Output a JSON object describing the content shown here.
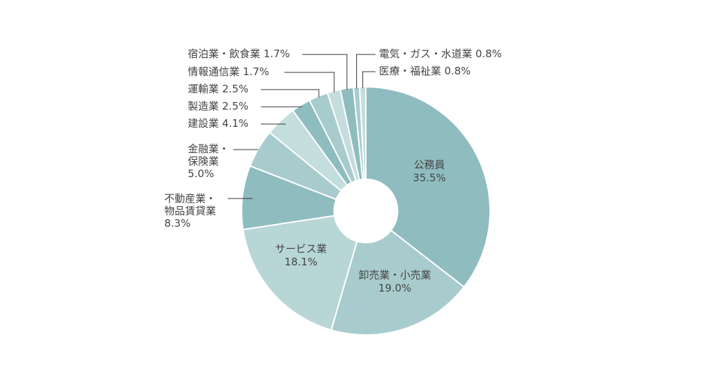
{
  "chart_data": {
    "type": "pie",
    "variant": "donut",
    "title": "",
    "slices": [
      {
        "name": "公務員",
        "value": 35.5,
        "label_value": "35.5%",
        "color": "#8fbcbf"
      },
      {
        "name": "卸売業・小売業",
        "value": 19.0,
        "label_value": "19.0%",
        "color": "#a8cccd"
      },
      {
        "name": "サービス業",
        "value": 18.1,
        "label_value": "18.1%",
        "color": "#b8d6d6"
      },
      {
        "name": "不動産業・物品賃貸業",
        "value": 8.3,
        "label_value": "8.3%",
        "color": "#8fbcbf"
      },
      {
        "name": "金融業・保険業",
        "value": 5.0,
        "label_value": "5.0%",
        "color": "#a8cccd"
      },
      {
        "name": "建設業",
        "value": 4.1,
        "label_value": "4.1%",
        "color": "#c4dddd"
      },
      {
        "name": "製造業",
        "value": 2.5,
        "label_value": "2.5%",
        "color": "#8fbcbf"
      },
      {
        "name": "運輸業",
        "value": 2.5,
        "label_value": "2.5%",
        "color": "#a8cccd"
      },
      {
        "name": "情報通信業",
        "value": 1.7,
        "label_value": "1.7%",
        "color": "#c4dddd"
      },
      {
        "name": "宿泊業・飲食業",
        "value": 1.7,
        "label_value": "1.7%",
        "color": "#8fbcbf"
      },
      {
        "name": "電気・ガス・水道業",
        "value": 0.8,
        "label_value": "0.8%",
        "color": "#a8cccd"
      },
      {
        "name": "医療・福祉業",
        "value": 0.8,
        "label_value": "0.8%",
        "color": "#c4dddd"
      }
    ],
    "labels": {
      "inside": [
        {
          "slice": 0,
          "lines": [
            "公務員",
            "35.5%"
          ]
        },
        {
          "slice": 1,
          "lines": [
            "卸売業・小売業",
            "19.0%"
          ]
        },
        {
          "slice": 2,
          "lines": [
            "サービス業",
            "18.1%"
          ]
        }
      ],
      "outside": [
        {
          "slice": 3,
          "lines": [
            "不動産業・",
            "物品賃貸業",
            "8.3%"
          ]
        },
        {
          "slice": 4,
          "lines": [
            "金融業・",
            "保険業",
            "5.0%"
          ]
        },
        {
          "slice": 5,
          "lines": [
            "建設業 4.1%"
          ]
        },
        {
          "slice": 6,
          "lines": [
            "製造業 2.5%"
          ]
        },
        {
          "slice": 7,
          "lines": [
            "運輸業 2.5%"
          ]
        },
        {
          "slice": 8,
          "lines": [
            "情報通信業 1.7%"
          ]
        },
        {
          "slice": 9,
          "lines": [
            "宿泊業・飲食業 1.7%"
          ]
        },
        {
          "slice": 10,
          "lines": [
            "電気・ガス・水道業 0.8%"
          ]
        },
        {
          "slice": 11,
          "lines": [
            "医療・福祉業 0.8%"
          ]
        }
      ]
    },
    "legend": "none"
  }
}
